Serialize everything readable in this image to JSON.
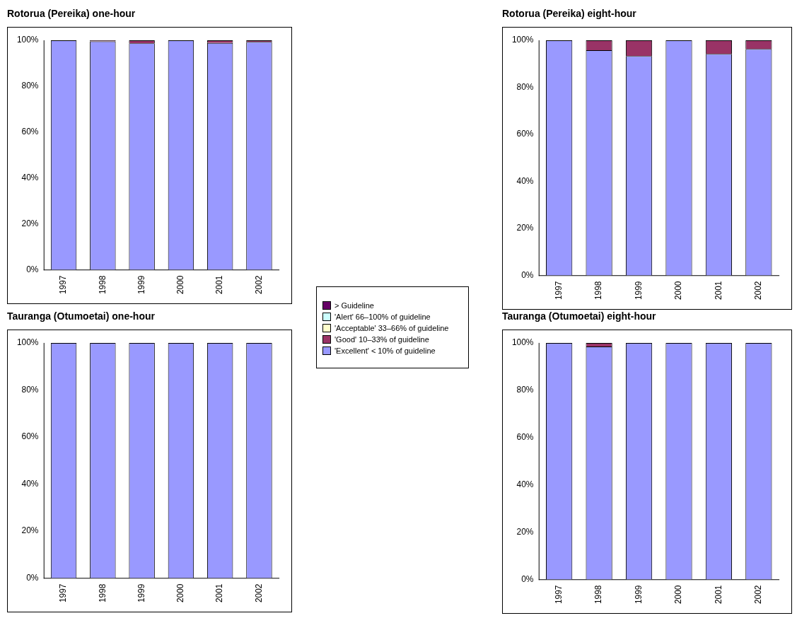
{
  "chart_data": [
    {
      "type": "bar",
      "title": "Rotorua (Pereika) one-hour",
      "stacked": true,
      "legend": "right",
      "grid": false,
      "categories": [
        "1997",
        "1998",
        "1999",
        "2000",
        "2001",
        "2002"
      ],
      "ylim": [
        0,
        100
      ],
      "yticks": [
        {
          "value": 0,
          "label": "0%"
        },
        {
          "value": 20,
          "label": "20%"
        },
        {
          "value": 40,
          "label": "40%"
        },
        {
          "value": 60,
          "label": "60%"
        },
        {
          "value": 80,
          "label": "80%"
        },
        {
          "value": 100,
          "label": "100%"
        }
      ],
      "series": [
        {
          "name": "'Excellent' < 10% of guideline",
          "color": "#9999ff",
          "values": [
            100,
            99.5,
            98.7,
            100,
            98.8,
            99.3
          ]
        },
        {
          "name": "'Good' 10–33% of guideline",
          "color": "#993366",
          "values": [
            0,
            0.5,
            1.3,
            0,
            1.2,
            0.7
          ]
        },
        {
          "name": "'Acceptable' 33–66% of guideline",
          "color": "#ffffcc",
          "values": [
            0,
            0,
            0,
            0,
            0,
            0
          ]
        },
        {
          "name": "'Alert' 66–100% of guideline",
          "color": "#ccffff",
          "values": [
            0,
            0,
            0,
            0,
            0,
            0
          ]
        },
        {
          "name": "> Guideline",
          "color": "#660066",
          "values": [
            0,
            0,
            0,
            0,
            0,
            0
          ]
        }
      ]
    },
    {
      "type": "bar",
      "title": "Rotorua (Pereika) eight-hour",
      "stacked": true,
      "grid": false,
      "categories": [
        "1997",
        "1998",
        "1999",
        "2000",
        "2001",
        "2002"
      ],
      "ylim": [
        0,
        100
      ],
      "yticks": [
        {
          "value": 0,
          "label": "0%"
        },
        {
          "value": 20,
          "label": "20%"
        },
        {
          "value": 40,
          "label": "40%"
        },
        {
          "value": 60,
          "label": "60%"
        },
        {
          "value": 80,
          "label": "80%"
        },
        {
          "value": 100,
          "label": "100%"
        }
      ],
      "series": [
        {
          "color": "#9999ff",
          "values": [
            100,
            95.8,
            93.3,
            100,
            94.2,
            96.3
          ]
        },
        {
          "color": "#993366",
          "values": [
            0,
            4.2,
            6.7,
            0,
            5.8,
            3.7
          ]
        },
        {
          "color": "#ffffcc",
          "values": [
            0,
            0,
            0,
            0,
            0,
            0
          ]
        },
        {
          "color": "#ccffff",
          "values": [
            0,
            0,
            0,
            0,
            0,
            0
          ]
        },
        {
          "color": "#660066",
          "values": [
            0,
            0,
            0,
            0,
            0,
            0
          ]
        }
      ]
    },
    {
      "type": "bar",
      "title": "Tauranga (Otumoetai) one-hour",
      "stacked": true,
      "grid": false,
      "categories": [
        "1997",
        "1998",
        "1999",
        "2000",
        "2001",
        "2002"
      ],
      "ylim": [
        0,
        100
      ],
      "yticks": [
        {
          "value": 0,
          "label": "0%"
        },
        {
          "value": 20,
          "label": "20%"
        },
        {
          "value": 40,
          "label": "40%"
        },
        {
          "value": 60,
          "label": "60%"
        },
        {
          "value": 80,
          "label": "80%"
        },
        {
          "value": 100,
          "label": "100%"
        }
      ],
      "series": [
        {
          "color": "#9999ff",
          "values": [
            100,
            100,
            100,
            100,
            100,
            100
          ]
        },
        {
          "color": "#993366",
          "values": [
            0,
            0,
            0,
            0,
            0,
            0
          ]
        },
        {
          "color": "#ffffcc",
          "values": [
            0,
            0,
            0,
            0,
            0,
            0
          ]
        },
        {
          "color": "#ccffff",
          "values": [
            0,
            0,
            0,
            0,
            0,
            0
          ]
        },
        {
          "color": "#660066",
          "values": [
            0,
            0,
            0,
            0,
            0,
            0
          ]
        }
      ]
    },
    {
      "type": "bar",
      "title": "Tauranga (Otumoetai) eight-hour",
      "stacked": true,
      "grid": false,
      "categories": [
        "1997",
        "1998",
        "1999",
        "2000",
        "2001",
        "2002"
      ],
      "ylim": [
        0,
        100
      ],
      "yticks": [
        {
          "value": 0,
          "label": "0%"
        },
        {
          "value": 20,
          "label": "20%"
        },
        {
          "value": 40,
          "label": "40%"
        },
        {
          "value": 60,
          "label": "60%"
        },
        {
          "value": 80,
          "label": "80%"
        },
        {
          "value": 100,
          "label": "100%"
        }
      ],
      "series": [
        {
          "color": "#9999ff",
          "values": [
            100,
            98.5,
            100,
            100,
            100,
            100
          ]
        },
        {
          "color": "#993366",
          "values": [
            0,
            1.5,
            0,
            0,
            0,
            0
          ]
        },
        {
          "color": "#ffffcc",
          "values": [
            0,
            0,
            0,
            0,
            0,
            0
          ]
        },
        {
          "color": "#ccffff",
          "values": [
            0,
            0,
            0,
            0,
            0,
            0
          ]
        },
        {
          "color": "#660066",
          "values": [
            0,
            0,
            0,
            0,
            0,
            0
          ]
        }
      ]
    }
  ]
}
